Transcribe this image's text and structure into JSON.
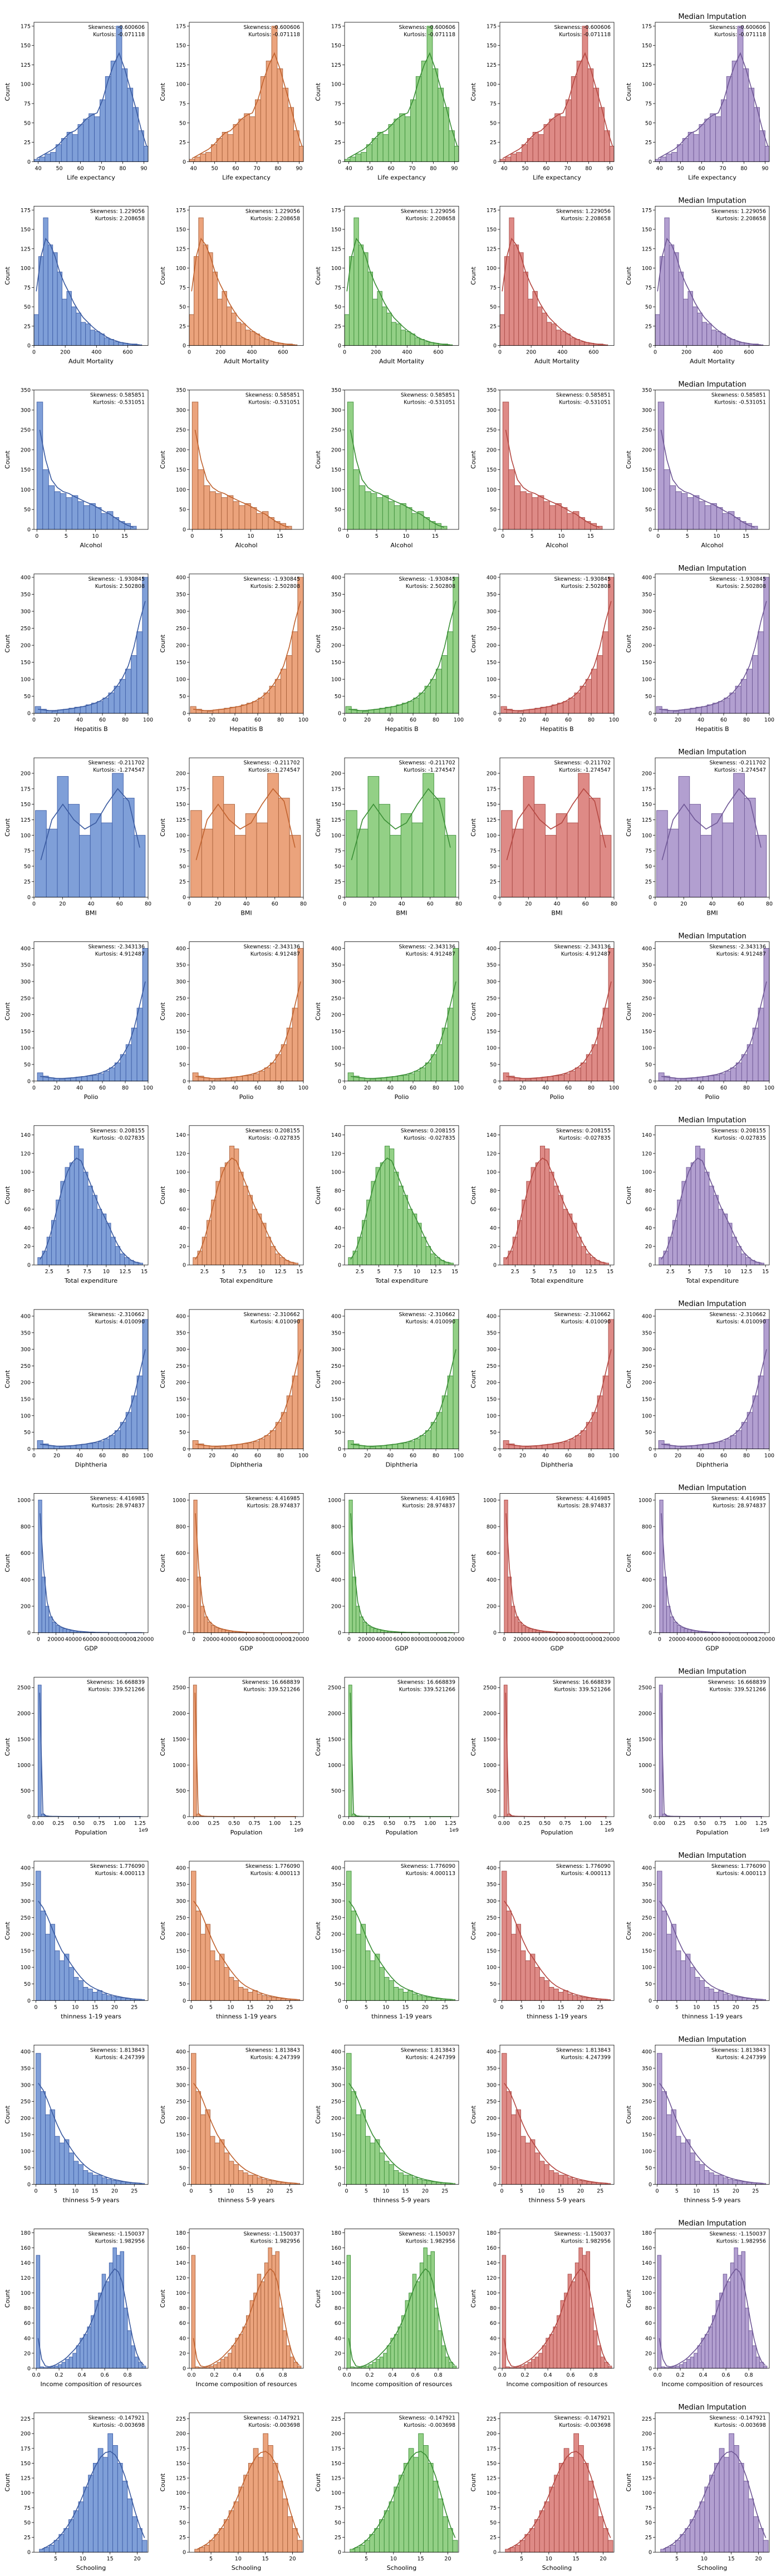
{
  "figure": {
    "column_title": "Median Imputation",
    "title_column_index": 4,
    "count_label": "Count",
    "column_colors": [
      {
        "fill": "#7f9fd8",
        "edge": "#3f5fa8",
        "kde": "#3a5aa0"
      },
      {
        "fill": "#eba37c",
        "edge": "#a8603a",
        "kde": "#c0622e"
      },
      {
        "fill": "#93d086",
        "edge": "#3e8f3a",
        "kde": "#3a8f35"
      },
      {
        "fill": "#de8a86",
        "edge": "#a84a46",
        "kde": "#b44741"
      },
      {
        "fill": "#b29fd0",
        "edge": "#6e5896",
        "kde": "#6f5796"
      }
    ]
  },
  "chart_data": [
    {
      "type": "bar",
      "xlabel": "Life expectancy",
      "ylabel": "Count",
      "skew_text": "Skewness: -0.600606",
      "kurt_text": "Kurtosis: -0.071118",
      "xlim": [
        38,
        92
      ],
      "xticks": [
        40,
        50,
        60,
        70,
        80,
        90
      ],
      "ylim": [
        0,
        180
      ],
      "yticks": [
        0,
        25,
        50,
        75,
        100,
        125,
        150,
        175
      ],
      "bin_start": 38,
      "bin_width": 2.6,
      "values": [
        3,
        6,
        10,
        12,
        22,
        30,
        38,
        35,
        48,
        55,
        62,
        58,
        80,
        110,
        130,
        175,
        120,
        95,
        70,
        40,
        20
      ],
      "kde": [
        4,
        8,
        12,
        16,
        22,
        30,
        37,
        40,
        47,
        55,
        60,
        63,
        80,
        105,
        125,
        140,
        120,
        95,
        70,
        42,
        20
      ]
    },
    {
      "type": "bar",
      "xlabel": "Adult Mortality",
      "ylabel": "Count",
      "skew_text": "Skewness: 1.229056",
      "kurt_text": "Kurtosis: 2.208658",
      "xlim": [
        0,
        730
      ],
      "xticks": [
        0,
        200,
        400,
        600
      ],
      "ylim": [
        0,
        180
      ],
      "yticks": [
        0,
        25,
        50,
        75,
        100,
        125,
        150,
        175
      ],
      "bin_start": 0,
      "bin_width": 30,
      "values": [
        40,
        115,
        165,
        130,
        120,
        95,
        60,
        70,
        50,
        42,
        30,
        28,
        20,
        18,
        15,
        10,
        8,
        5,
        4,
        3,
        2,
        2,
        1
      ],
      "kde": [
        70,
        115,
        138,
        130,
        115,
        95,
        80,
        68,
        55,
        45,
        36,
        30,
        24,
        19,
        15,
        11,
        8,
        6,
        4,
        3,
        2,
        1,
        1
      ]
    },
    {
      "type": "bar",
      "xlabel": "Alcohol",
      "ylabel": "Count",
      "skew_text": "Skewness: 0.585851",
      "kurt_text": "Kurtosis: -0.531051",
      "xlim": [
        -0.5,
        19
      ],
      "xticks": [
        0,
        5,
        10,
        15
      ],
      "ylim": [
        0,
        350
      ],
      "yticks": [
        0,
        50,
        100,
        150,
        200,
        250,
        300,
        350
      ],
      "bin_start": 0,
      "bin_width": 1,
      "values": [
        320,
        150,
        110,
        95,
        90,
        80,
        85,
        70,
        60,
        65,
        55,
        40,
        45,
        30,
        20,
        15,
        8
      ],
      "kde": [
        250,
        175,
        125,
        105,
        95,
        90,
        82,
        75,
        68,
        62,
        54,
        45,
        38,
        28,
        18,
        10,
        5
      ]
    },
    {
      "type": "bar",
      "xlabel": "Hepatitis B",
      "ylabel": "Count",
      "skew_text": "Skewness: -1.930845",
      "kurt_text": "Kurtosis: 2.502808",
      "xlim": [
        0,
        100
      ],
      "xticks": [
        0,
        20,
        40,
        60,
        80,
        100
      ],
      "ylim": [
        0,
        410
      ],
      "yticks": [
        0,
        50,
        100,
        150,
        200,
        250,
        300,
        350,
        400
      ],
      "bin_start": 1,
      "bin_width": 4.95,
      "values": [
        20,
        12,
        8,
        6,
        10,
        12,
        15,
        18,
        20,
        25,
        30,
        35,
        45,
        60,
        80,
        100,
        130,
        170,
        240,
        400
      ],
      "kde": [
        12,
        10,
        8,
        8,
        10,
        12,
        14,
        17,
        20,
        24,
        29,
        36,
        46,
        60,
        80,
        105,
        140,
        195,
        270,
        330
      ]
    },
    {
      "type": "bar",
      "xlabel": "BMI",
      "ylabel": "Count",
      "skew_text": "Skewness: -0.211702",
      "kurt_text": "Kurtosis: -1.274547",
      "xlim": [
        0,
        80
      ],
      "xticks": [
        0,
        20,
        40,
        60,
        80
      ],
      "ylim": [
        0,
        225
      ],
      "yticks": [
        0,
        25,
        50,
        75,
        100,
        125,
        150,
        175,
        200
      ],
      "bin_start": 1,
      "bin_width": 7.7,
      "values": [
        140,
        110,
        195,
        150,
        100,
        135,
        120,
        200,
        160,
        100
      ],
      "kde": [
        60,
        125,
        150,
        125,
        110,
        120,
        150,
        175,
        155,
        80
      ]
    },
    {
      "type": "bar",
      "xlabel": "Polio",
      "ylabel": "Count",
      "skew_text": "Skewness: -2.343136",
      "kurt_text": "Kurtosis: 4.912487",
      "xlim": [
        0,
        100
      ],
      "xticks": [
        0,
        20,
        40,
        60,
        80,
        100
      ],
      "ylim": [
        0,
        420
      ],
      "yticks": [
        0,
        50,
        100,
        150,
        200,
        250,
        300,
        350,
        400
      ],
      "bin_start": 3,
      "bin_width": 4.85,
      "values": [
        25,
        15,
        10,
        8,
        6,
        8,
        10,
        12,
        14,
        16,
        18,
        22,
        30,
        40,
        55,
        80,
        110,
        160,
        220,
        400
      ],
      "kde": [
        14,
        12,
        10,
        8,
        8,
        9,
        10,
        12,
        14,
        17,
        20,
        25,
        32,
        42,
        56,
        80,
        110,
        160,
        230,
        300
      ]
    },
    {
      "type": "bar",
      "xlabel": "Total expenditure",
      "ylabel": "Count",
      "skew_text": "Skewness: 0.208155",
      "kurt_text": "Kurtosis: -0.027835",
      "xlim": [
        0.5,
        15.5
      ],
      "xticks": [
        2.5,
        5.0,
        7.5,
        10.0,
        12.5,
        15.0
      ],
      "ylim": [
        0,
        150
      ],
      "yticks": [
        0,
        20,
        40,
        60,
        80,
        100,
        120,
        140
      ],
      "bin_start": 1,
      "bin_width": 0.6,
      "values": [
        8,
        15,
        30,
        48,
        70,
        90,
        105,
        110,
        128,
        125,
        100,
        85,
        75,
        60,
        55,
        45,
        30,
        20,
        12,
        8,
        5,
        3,
        2
      ],
      "kde": [
        6,
        14,
        28,
        46,
        66,
        85,
        100,
        110,
        115,
        112,
        100,
        88,
        75,
        63,
        53,
        43,
        32,
        22,
        14,
        9,
        5,
        3,
        2
      ]
    },
    {
      "type": "bar",
      "xlabel": "Diphtheria",
      "ylabel": "Count",
      "skew_text": "Skewness: -2.310662",
      "kurt_text": "Kurtosis: 4.010090",
      "xlim": [
        0,
        100
      ],
      "xticks": [
        0,
        20,
        40,
        60,
        80,
        100
      ],
      "ylim": [
        0,
        420
      ],
      "yticks": [
        0,
        50,
        100,
        150,
        200,
        250,
        300,
        350,
        400
      ],
      "bin_start": 3,
      "bin_width": 4.85,
      "values": [
        25,
        15,
        10,
        8,
        6,
        8,
        10,
        12,
        14,
        16,
        18,
        22,
        30,
        40,
        55,
        80,
        110,
        160,
        220,
        390
      ],
      "kde": [
        14,
        12,
        10,
        8,
        8,
        9,
        10,
        12,
        14,
        17,
        20,
        25,
        32,
        42,
        56,
        80,
        110,
        160,
        230,
        300
      ]
    },
    {
      "type": "bar",
      "xlabel": "GDP",
      "ylabel": "Count",
      "skew_text": "Skewness: 4.416985",
      "kurt_text": "Kurtosis: 28.974837",
      "xlim": [
        -5000,
        125000
      ],
      "xticks": [
        0,
        20000,
        40000,
        60000,
        80000,
        100000,
        120000
      ],
      "ylim": [
        0,
        1050
      ],
      "yticks": [
        0,
        200,
        400,
        600,
        800,
        1000
      ],
      "bin_start": 0,
      "bin_width": 4000,
      "values": [
        1000,
        420,
        200,
        120,
        80,
        55,
        40,
        30,
        25,
        18,
        14,
        10,
        8,
        6,
        5,
        4,
        3,
        3,
        2,
        2,
        1,
        1,
        1,
        1,
        1,
        1,
        1,
        1,
        1,
        1
      ],
      "kde": [
        900,
        480,
        230,
        130,
        85,
        60,
        44,
        33,
        26,
        20,
        15,
        11,
        9,
        7,
        5,
        4,
        3,
        3,
        2,
        2,
        1,
        1,
        1,
        1,
        1,
        1,
        1,
        1,
        1,
        1
      ]
    },
    {
      "type": "bar",
      "xlabel": "Population",
      "ylabel": "Count",
      "skew_text": "Skewness: 16.668839",
      "kurt_text": "Kurtosis: 339.521266",
      "xlim": [
        -0.05,
        1.35
      ],
      "xticks": [
        0.0,
        0.25,
        0.5,
        0.75,
        1.0,
        1.25
      ],
      "xtick_labels": [
        "0.00",
        "0.25",
        "0.50",
        "0.75",
        "1.00",
        "1.25"
      ],
      "xscale_note": "1e9",
      "ylim": [
        0,
        2700
      ],
      "yticks": [
        0,
        500,
        1000,
        1500,
        2000,
        2500
      ],
      "bin_start": 0,
      "bin_width": 0.04,
      "values": [
        2550,
        50,
        15,
        8,
        5,
        4,
        3,
        2,
        2,
        1,
        1,
        1,
        1,
        1,
        1,
        1,
        1,
        1,
        1,
        1,
        1,
        1,
        1,
        1,
        1,
        1,
        1,
        1,
        1,
        1,
        1,
        1
      ],
      "kde": [
        2400,
        60,
        15,
        8,
        5,
        4,
        3,
        2,
        2,
        1,
        1,
        1,
        1,
        1,
        1,
        1,
        1,
        1,
        1,
        1,
        1,
        1,
        1,
        1,
        1,
        1,
        1,
        1,
        1,
        1,
        1,
        1
      ]
    },
    {
      "type": "bar",
      "xlabel": "thinness  1-19 years",
      "ylabel": "Count",
      "skew_text": "Skewness: 1.776090",
      "kurt_text": "Kurtosis: 4.000113",
      "xlim": [
        -0.5,
        28.5
      ],
      "xticks": [
        0,
        5,
        10,
        15,
        20,
        25
      ],
      "ylim": [
        0,
        420
      ],
      "yticks": [
        0,
        50,
        100,
        150,
        200,
        250,
        300,
        350,
        400
      ],
      "bin_start": 0,
      "bin_width": 1.2,
      "values": [
        390,
        270,
        200,
        230,
        150,
        120,
        140,
        100,
        70,
        60,
        40,
        35,
        25,
        30,
        20,
        15,
        12,
        10,
        8,
        6,
        5,
        4,
        3
      ],
      "kde": [
        300,
        280,
        250,
        215,
        180,
        150,
        130,
        108,
        88,
        70,
        55,
        44,
        36,
        30,
        24,
        19,
        15,
        12,
        9,
        7,
        5,
        4,
        3
      ]
    },
    {
      "type": "bar",
      "xlabel": "thinness 5-9 years",
      "ylabel": "Count",
      "skew_text": "Skewness: 1.813843",
      "kurt_text": "Kurtosis: 4.247399",
      "xlim": [
        -0.5,
        28.5
      ],
      "xticks": [
        0,
        5,
        10,
        15,
        20,
        25
      ],
      "ylim": [
        0,
        420
      ],
      "yticks": [
        0,
        50,
        100,
        150,
        200,
        250,
        300,
        350,
        400
      ],
      "bin_start": 0,
      "bin_width": 1.2,
      "values": [
        395,
        280,
        210,
        225,
        145,
        125,
        135,
        95,
        70,
        60,
        42,
        35,
        28,
        28,
        20,
        15,
        12,
        10,
        8,
        6,
        5,
        4,
        3
      ],
      "kde": [
        305,
        285,
        252,
        215,
        180,
        150,
        128,
        106,
        86,
        69,
        55,
        44,
        36,
        30,
        24,
        19,
        15,
        12,
        9,
        7,
        5,
        4,
        3
      ]
    },
    {
      "type": "bar",
      "xlabel": "Income composition of resources",
      "ylabel": "Count",
      "skew_text": "Skewness: -1.150037",
      "kurt_text": "Kurtosis: 1.982956",
      "xlim": [
        -0.02,
        0.98
      ],
      "xticks": [
        0.0,
        0.2,
        0.4,
        0.6,
        0.8
      ],
      "xtick_labels": [
        "0.0",
        "0.2",
        "0.4",
        "0.6",
        "0.8"
      ],
      "ylim": [
        0,
        185
      ],
      "yticks": [
        0,
        20,
        40,
        60,
        80,
        100,
        120,
        140,
        160,
        180
      ],
      "bin_start": 0,
      "bin_width": 0.032,
      "values": [
        150,
        2,
        1,
        1,
        2,
        3,
        5,
        8,
        12,
        15,
        20,
        30,
        40,
        45,
        55,
        70,
        90,
        100,
        125,
        115,
        140,
        160,
        150,
        155,
        80,
        50,
        30,
        15,
        8,
        3
      ],
      "kde": [
        40,
        12,
        3,
        2,
        3,
        5,
        8,
        11,
        15,
        20,
        25,
        31,
        38,
        46,
        55,
        66,
        80,
        95,
        108,
        118,
        126,
        132,
        128,
        115,
        90,
        62,
        38,
        20,
        9,
        4
      ]
    },
    {
      "type": "bar",
      "xlabel": "Schooling",
      "ylabel": "Count",
      "skew_text": "Skewness: -0.147921",
      "kurt_text": "Kurtosis: -0.003698",
      "xlim": [
        1,
        22
      ],
      "xticks": [
        5,
        10,
        15,
        20
      ],
      "ylim": [
        0,
        235
      ],
      "yticks": [
        0,
        25,
        50,
        75,
        100,
        125,
        150,
        175,
        200,
        225
      ],
      "bin_start": 2,
      "bin_width": 0.9,
      "values": [
        5,
        8,
        12,
        20,
        30,
        40,
        55,
        70,
        85,
        110,
        130,
        150,
        175,
        160,
        200,
        180,
        150,
        120,
        90,
        60,
        40,
        20
      ],
      "kde": [
        5,
        9,
        14,
        21,
        30,
        41,
        54,
        70,
        88,
        108,
        128,
        146,
        160,
        168,
        170,
        164,
        150,
        128,
        100,
        70,
        44,
        24
      ]
    }
  ]
}
